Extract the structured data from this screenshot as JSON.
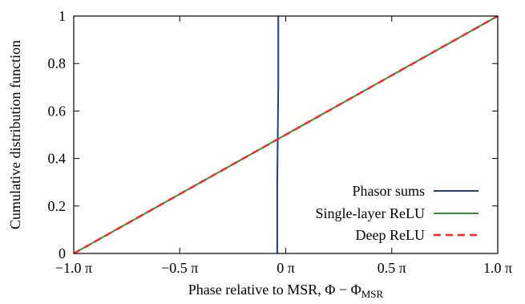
{
  "chart_data": {
    "type": "line",
    "xlabel": "Phase relative to MSR, Φ − Φ",
    "xlabel_subscript": "MSR",
    "ylabel": "Cumulative distribution function",
    "xlim": [
      -1.0,
      1.0
    ],
    "ylim": [
      0,
      1
    ],
    "x_unit": "π",
    "xticks": [
      -1.0,
      -0.5,
      0.0,
      0.5,
      1.0
    ],
    "xtick_labels": [
      "−1.0 π",
      "−0.5 π",
      "0 π",
      "0.5 π",
      "1.0 π"
    ],
    "yticks": [
      0,
      0.2,
      0.4,
      0.6,
      0.8,
      1
    ],
    "ytick_labels": [
      "0",
      "0.2",
      "0.4",
      "0.6",
      "0.8",
      "1"
    ],
    "grid": false,
    "legend_position": "bottom-right",
    "series": [
      {
        "name": "Phasor sums",
        "color": "#1f3c96",
        "style": "solid",
        "x": [
          -0.04,
          -0.04,
          -0.035,
          -0.035
        ],
        "y": [
          0,
          0.3,
          0.7,
          1
        ]
      },
      {
        "name": "Single-layer ReLU",
        "color": "#2a9a2a",
        "style": "solid",
        "x": [
          -1.0,
          -0.04,
          1.0
        ],
        "y": [
          0,
          0.48,
          1
        ]
      },
      {
        "name": "Deep ReLU",
        "color": "#ff2020",
        "style": "dashed",
        "x": [
          -1.0,
          -0.04,
          1.0
        ],
        "y": [
          0,
          0.48,
          1
        ]
      }
    ]
  }
}
